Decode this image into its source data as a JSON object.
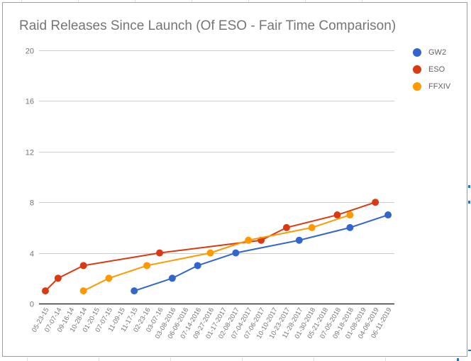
{
  "chart_data": {
    "type": "line",
    "title": "Raid Releases Since Launch (Of ESO - Fair Time Comparison)",
    "xlabel": "",
    "ylabel": "",
    "ylim": [
      0,
      20
    ],
    "yticks": [
      0,
      4,
      8,
      12,
      16,
      20
    ],
    "grid": true,
    "legend_position": "right",
    "categories": [
      "05-23-15",
      "07-07-14",
      "09-16-14",
      "10-28-14",
      "01-20-15",
      "07-07-15",
      "11-09-15",
      "11-17-15",
      "02-23-16",
      "03-07-16",
      "03-08-2016",
      "06-06-2016",
      "07-14-2016",
      "09-27-2016",
      "01-17-2017",
      "02-08-2017",
      "07-04-2017",
      "07-06-2017",
      "10-10-2017",
      "10-23-2017",
      "11-28-2017",
      "01-30-2018",
      "05-21-2018",
      "07-05-2018",
      "09-18-2018",
      "01-08-2019",
      "04-06-2019",
      "06-11-2019"
    ],
    "series": [
      {
        "name": "GW2",
        "color": "#3366cc",
        "values": [
          null,
          null,
          null,
          null,
          null,
          null,
          null,
          1,
          null,
          null,
          2,
          null,
          3,
          null,
          null,
          4,
          null,
          null,
          null,
          null,
          5,
          null,
          null,
          null,
          6,
          null,
          null,
          7
        ]
      },
      {
        "name": "ESO",
        "color": "#dc3912",
        "values": [
          1,
          2,
          null,
          3,
          null,
          null,
          null,
          null,
          null,
          4,
          null,
          null,
          null,
          null,
          null,
          null,
          null,
          5,
          null,
          6,
          null,
          null,
          null,
          7,
          null,
          null,
          8,
          null
        ]
      },
      {
        "name": "FFXIV",
        "color": "#ff9900",
        "values": [
          null,
          null,
          null,
          1,
          null,
          2,
          null,
          null,
          3,
          null,
          null,
          null,
          null,
          4,
          null,
          null,
          5,
          null,
          null,
          null,
          null,
          6,
          null,
          null,
          7,
          null,
          null,
          null
        ]
      }
    ]
  },
  "legend": [
    {
      "label": "GW2",
      "color": "#3366cc"
    },
    {
      "label": "ESO",
      "color": "#dc3912"
    },
    {
      "label": "FFXIV",
      "color": "#ff9900"
    }
  ]
}
